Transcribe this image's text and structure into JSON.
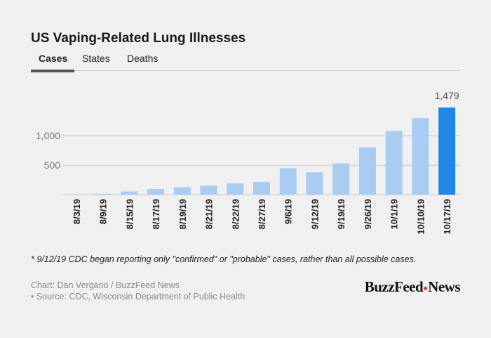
{
  "title": "US Vaping-Related Lung Illnesses",
  "tabs": [
    {
      "label": "Cases",
      "active": true
    },
    {
      "label": "States",
      "active": false
    },
    {
      "label": "Deaths",
      "active": false
    }
  ],
  "footnote": "* 9/12/19 CDC began reporting only \"confirmed\" or \"probable\" cases, rather than all possible cases.",
  "credit_line": "Chart: Dan Vergano / BuzzFeed News",
  "source_line": "• Source: CDC, Wisconsin Department of Public Health",
  "logo": {
    "left": "BuzzFeed",
    "right": "News"
  },
  "colors": {
    "bar": "#aaccf3",
    "highlight": "#1f85e6",
    "grid": "#c8c8c8",
    "axis_text": "#777777"
  },
  "chart_data": {
    "type": "bar",
    "categories": [
      "8/3/19",
      "8/9/19",
      "8/15/19",
      "8/17/19",
      "8/19/19",
      "8/21/19",
      "8/22/19",
      "8/27/19",
      "9/6/19",
      "9/12/19",
      "9/19/19",
      "9/26/19",
      "10/1/19",
      "10/10/19",
      "10/17/19"
    ],
    "values": [
      6,
      14,
      54,
      94,
      127,
      153,
      193,
      215,
      450,
      380,
      530,
      805,
      1080,
      1299,
      1479
    ],
    "highlight_index": 14,
    "annotations": [
      {
        "index": 14,
        "label": "1,479"
      }
    ],
    "yticks": [
      {
        "value": 500,
        "label": "500"
      },
      {
        "value": 1000,
        "label": "1,000"
      }
    ],
    "ylim": [
      0,
      1479
    ],
    "grid": true,
    "title": "",
    "xlabel": "",
    "ylabel": ""
  }
}
